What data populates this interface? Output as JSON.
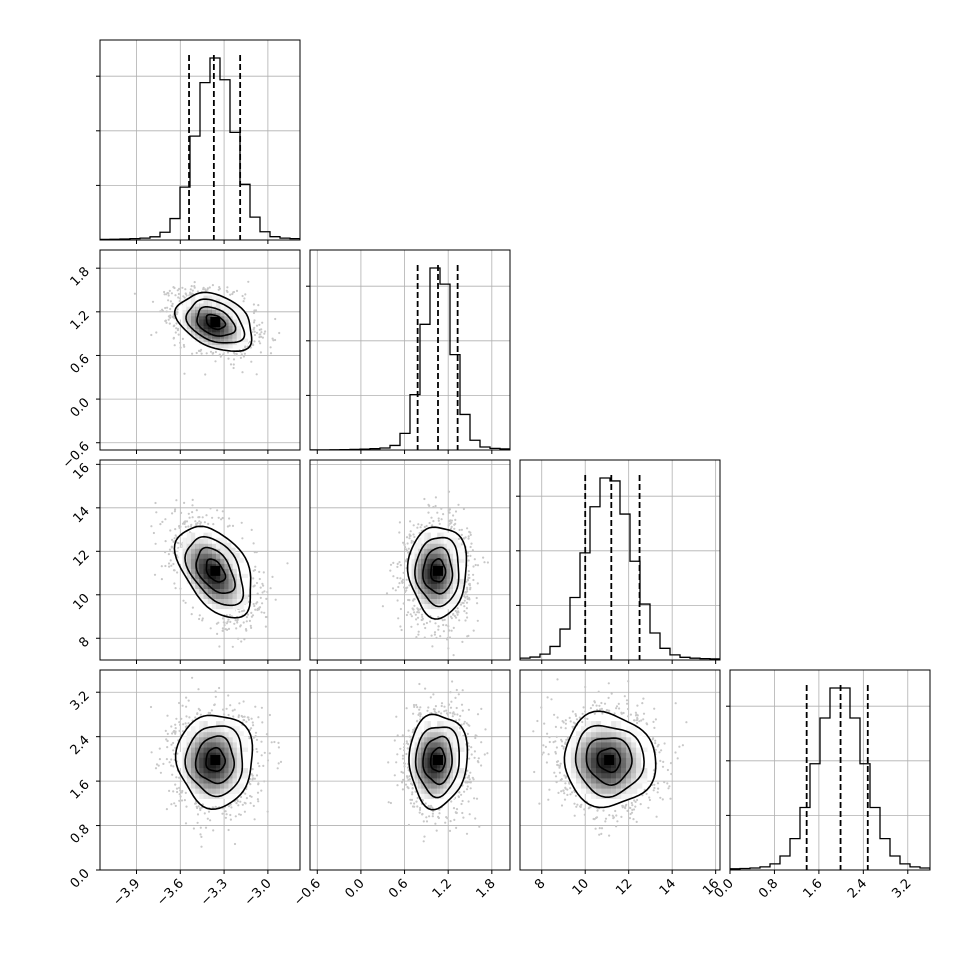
{
  "chart_data": {
    "type": "corner",
    "grid": true,
    "n_params": 4,
    "params": [
      {
        "range": [
          -4.15,
          -2.78
        ],
        "ticks": [
          "−3.9",
          "−3.6",
          "−3.3",
          "−3.0"
        ],
        "tick_values": [
          -3.9,
          -3.6,
          -3.3,
          -3.0
        ],
        "mean": -3.36,
        "sd": 0.13,
        "quantiles": [
          -3.54,
          -3.37,
          -3.19
        ]
      },
      {
        "range": [
          -0.7,
          2.05
        ],
        "ticks": [
          "−0.6",
          "0.0",
          "0.6",
          "1.2",
          "1.8"
        ],
        "tick_values": [
          -0.6,
          0.0,
          0.6,
          1.2,
          1.8
        ],
        "mean": 1.06,
        "sd": 0.2,
        "quantiles": [
          0.78,
          1.06,
          1.33
        ]
      },
      {
        "range": [
          7.0,
          16.2
        ],
        "ticks": [
          "8",
          "10",
          "12",
          "14",
          "16"
        ],
        "tick_values": [
          8,
          10,
          12,
          14,
          16
        ],
        "mean": 11.1,
        "sd": 1.05,
        "quantiles": [
          10.0,
          11.2,
          12.5
        ]
      },
      {
        "range": [
          0.0,
          3.6
        ],
        "ticks": [
          "0.0",
          "0.8",
          "1.6",
          "2.4",
          "3.2"
        ],
        "tick_values": [
          0.0,
          0.8,
          1.6,
          2.4,
          3.2
        ],
        "mean": 1.98,
        "sd": 0.42,
        "quantiles": [
          1.38,
          1.99,
          2.48
        ]
      }
    ],
    "correlations": [
      {
        "pair": [
          1,
          0
        ],
        "rho": -0.35
      },
      {
        "pair": [
          2,
          0
        ],
        "rho": -0.45
      },
      {
        "pair": [
          2,
          1
        ],
        "rho": 0.0
      },
      {
        "pair": [
          3,
          0
        ],
        "rho": 0.0
      },
      {
        "pair": [
          3,
          1
        ],
        "rho": 0.05
      },
      {
        "pair": [
          3,
          2
        ],
        "rho": -0.05
      }
    ],
    "histogram_bins": 20,
    "contour_levels_sigma": [
      0.5,
      1.0,
      1.5,
      2.0
    ],
    "xlabel": "",
    "ylabel": "",
    "title": ""
  },
  "colors": {
    "line": "#000000",
    "grid": "#b0b0b0",
    "scatter": "#c8c8c8",
    "background": "#ffffff"
  }
}
